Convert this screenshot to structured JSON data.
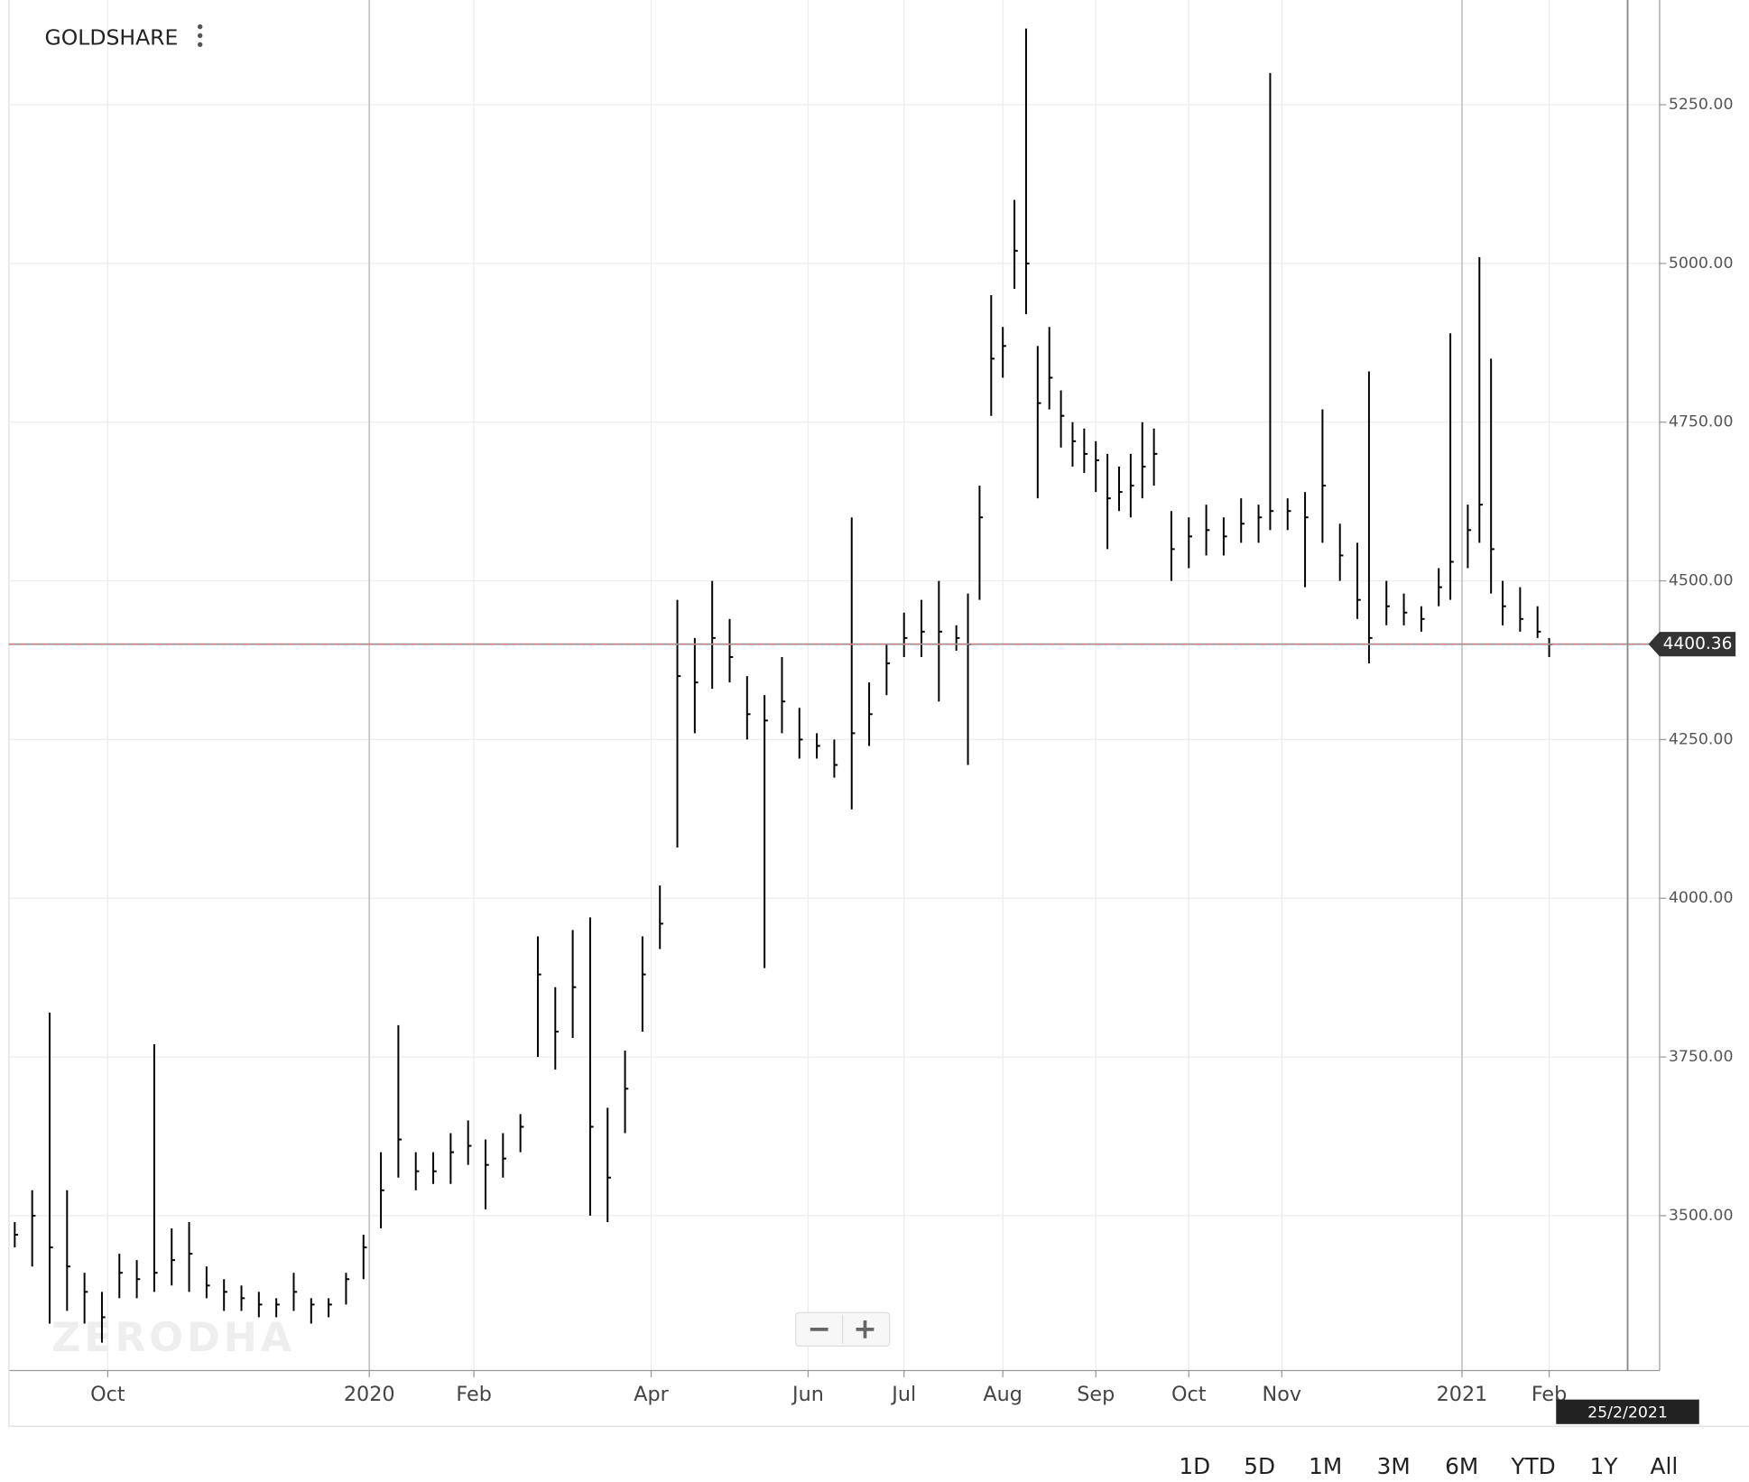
{
  "chart_data": {
    "type": "ohlc",
    "title": "GOLDSHARE",
    "watermark": "ZERODHA",
    "color": "#000000",
    "grid": true,
    "x": [
      2,
      8,
      14,
      20,
      26,
      32,
      38,
      44,
      50,
      56,
      62,
      68,
      74,
      80,
      86,
      92,
      98,
      104,
      110,
      116,
      122,
      128,
      134,
      140,
      146,
      152,
      158,
      164,
      170,
      176,
      182,
      188,
      194,
      200,
      206,
      212,
      218,
      224,
      230,
      236,
      242,
      248,
      254,
      260,
      266,
      272,
      278,
      284,
      290,
      296,
      302,
      308,
      314,
      320,
      326,
      330,
      334,
      338,
      342,
      346,
      350,
      354,
      358,
      362,
      366,
      370,
      374,
      378,
      382,
      386,
      390,
      394,
      400,
      406,
      412,
      418,
      424,
      430,
      434,
      440,
      446,
      452,
      458,
      464,
      468,
      474,
      480,
      486,
      492,
      496,
      502,
      506,
      510,
      514,
      520,
      526,
      530
    ],
    "high": [
      3490,
      3540,
      3820,
      3540,
      3410,
      3380,
      3440,
      3430,
      3770,
      3480,
      3490,
      3420,
      3400,
      3390,
      3380,
      3370,
      3410,
      3370,
      3370,
      3410,
      3470,
      3600,
      3800,
      3600,
      3600,
      3630,
      3650,
      3620,
      3630,
      3660,
      3940,
      3860,
      3950,
      3970,
      3670,
      3760,
      3940,
      4020,
      4470,
      4410,
      4500,
      4440,
      4350,
      4320,
      4380,
      4300,
      4260,
      4250,
      4600,
      4340,
      4400,
      4450,
      4470,
      4500,
      4430,
      4480,
      4650,
      4950,
      4900,
      5100,
      5370,
      4870,
      4900,
      4800,
      4750,
      4740,
      4720,
      4700,
      4680,
      4700,
      4750,
      4740,
      4610,
      4600,
      4620,
      4600,
      4630,
      4620,
      5300,
      4630,
      4640,
      4770,
      4590,
      4560,
      4830,
      4500,
      4480,
      4460,
      4520,
      4890,
      4620,
      5010,
      4850,
      4500,
      4490,
      4460,
      4410
    ],
    "low": [
      3450,
      3420,
      3330,
      3350,
      3330,
      3300,
      3370,
      3370,
      3380,
      3390,
      3380,
      3370,
      3350,
      3350,
      3340,
      3340,
      3350,
      3330,
      3340,
      3360,
      3400,
      3480,
      3560,
      3540,
      3550,
      3550,
      3580,
      3510,
      3560,
      3600,
      3750,
      3730,
      3780,
      3500,
      3490,
      3630,
      3790,
      3920,
      4080,
      4260,
      4330,
      4340,
      4250,
      3890,
      4260,
      4220,
      4220,
      4190,
      4140,
      4240,
      4320,
      4380,
      4380,
      4310,
      4390,
      4210,
      4470,
      4760,
      4820,
      4960,
      4920,
      4630,
      4770,
      4710,
      4680,
      4670,
      4640,
      4550,
      4610,
      4600,
      4630,
      4650,
      4500,
      4520,
      4540,
      4540,
      4560,
      4560,
      4580,
      4580,
      4490,
      4560,
      4500,
      4440,
      4370,
      4430,
      4430,
      4420,
      4460,
      4470,
      4520,
      4560,
      4480,
      4430,
      4420,
      4410,
      4380
    ],
    "close": [
      3470,
      3500,
      3450,
      3420,
      3380,
      3340,
      3410,
      3400,
      3410,
      3430,
      3440,
      3390,
      3380,
      3370,
      3360,
      3360,
      3380,
      3360,
      3360,
      3400,
      3450,
      3540,
      3620,
      3570,
      3570,
      3600,
      3610,
      3580,
      3590,
      3640,
      3880,
      3790,
      3860,
      3640,
      3560,
      3700,
      3880,
      3960,
      4350,
      4340,
      4410,
      4380,
      4290,
      4280,
      4310,
      4250,
      4240,
      4210,
      4260,
      4290,
      4370,
      4410,
      4420,
      4420,
      4410,
      4400,
      4600,
      4850,
      4870,
      5020,
      5000,
      4780,
      4820,
      4760,
      4720,
      4700,
      4690,
      4630,
      4640,
      4650,
      4680,
      4700,
      4550,
      4570,
      4580,
      4570,
      4590,
      4600,
      4610,
      4610,
      4600,
      4650,
      4540,
      4470,
      4410,
      4460,
      4450,
      4440,
      4490,
      4530,
      4580,
      4620,
      4550,
      4460,
      4440,
      4420,
      4400
    ],
    "xlim": [
      0,
      568
    ],
    "ylim": [
      3256,
      5415
    ],
    "xticks": [
      {
        "value": 34,
        "label": "Oct"
      },
      {
        "value": 124,
        "label": "2020"
      },
      {
        "value": 160,
        "label": "Feb"
      },
      {
        "value": 221,
        "label": "Apr"
      },
      {
        "value": 275,
        "label": "Jun"
      },
      {
        "value": 308,
        "label": "Jul"
      },
      {
        "value": 342,
        "label": "Aug"
      },
      {
        "value": 374,
        "label": "Sep"
      },
      {
        "value": 406,
        "label": "Oct"
      },
      {
        "value": 438,
        "label": "Nov"
      },
      {
        "value": 500,
        "label": "2021"
      },
      {
        "value": 530,
        "label": "Feb"
      }
    ],
    "yticks": [
      {
        "value": 3500,
        "label": "3500.00"
      },
      {
        "value": 3750,
        "label": "3750.00"
      },
      {
        "value": 4000,
        "label": "4000.00"
      },
      {
        "value": 4250,
        "label": "4250.00"
      },
      {
        "value": 4500,
        "label": "4500.00"
      },
      {
        "value": 4750,
        "label": "4750.00"
      },
      {
        "value": 5000,
        "label": "5000.00"
      },
      {
        "value": 5250,
        "label": "5250.00"
      }
    ],
    "last_price": 4400.36,
    "cursor": {
      "x": 557,
      "label": "25/2/2021"
    },
    "range_buttons": [
      "1D",
      "5D",
      "1M",
      "3M",
      "6M",
      "YTD",
      "1Y",
      "All"
    ]
  }
}
